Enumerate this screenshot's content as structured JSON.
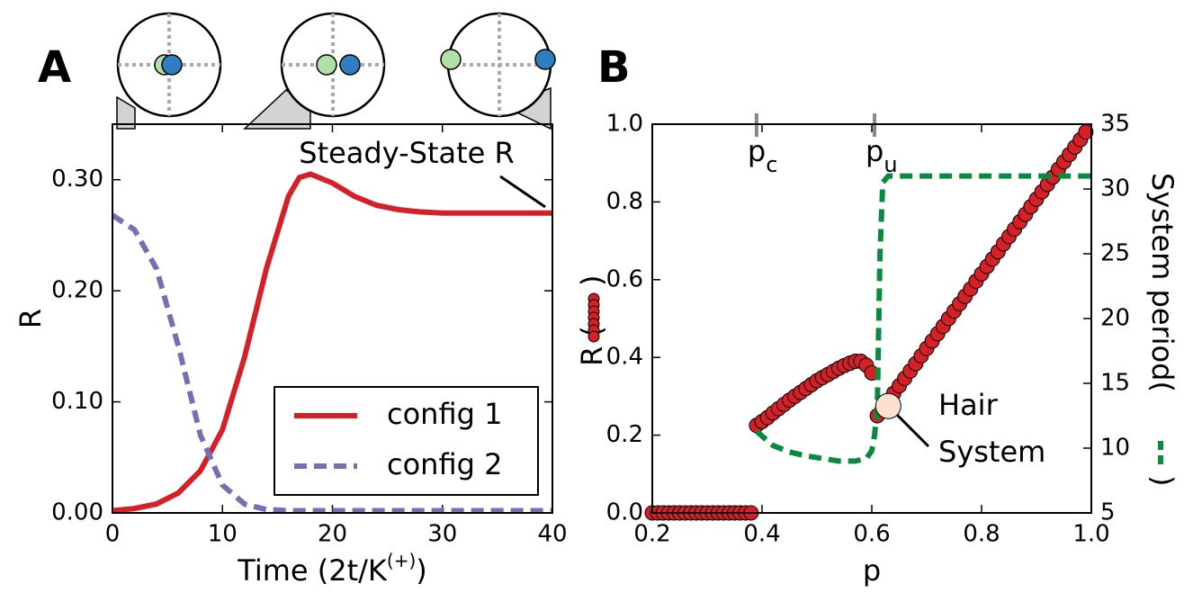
{
  "chart_data": [
    {
      "type": "line",
      "panel": "A",
      "xlabel": "Time (2t/K",
      "xlabel_sup": "(+)",
      "xlabel_end": ")",
      "ylabel": "R",
      "annotation": "Steady-State R",
      "x": [
        0,
        2,
        4,
        6,
        8,
        10,
        12,
        14,
        16,
        17,
        18,
        20,
        22,
        24,
        26,
        28,
        30,
        32,
        34,
        36,
        38,
        40
      ],
      "series": [
        {
          "name": "config 1",
          "color": "#d62028",
          "style": "solid",
          "values": [
            0.002,
            0.004,
            0.008,
            0.018,
            0.038,
            0.075,
            0.14,
            0.22,
            0.285,
            0.302,
            0.305,
            0.297,
            0.285,
            0.277,
            0.273,
            0.271,
            0.27,
            0.27,
            0.27,
            0.27,
            0.27,
            0.27
          ]
        },
        {
          "name": "config 2",
          "color": "#7570b3",
          "style": "dashed",
          "values": [
            0.268,
            0.255,
            0.22,
            0.15,
            0.07,
            0.025,
            0.008,
            0.003,
            0.002,
            0.002,
            0.002,
            0.002,
            0.002,
            0.002,
            0.002,
            0.002,
            0.002,
            0.002,
            0.002,
            0.002,
            0.002,
            0.002
          ]
        }
      ],
      "xlim": [
        0,
        40
      ],
      "xticks": [
        0,
        10,
        20,
        30,
        40
      ],
      "ylim": [
        0,
        0.35
      ],
      "yticks": [
        {
          "value": 0,
          "label": "0.00"
        },
        {
          "value": 0.1,
          "label": "0.10"
        },
        {
          "value": 0.2,
          "label": "0.20"
        },
        {
          "value": 0.3,
          "label": "0.30"
        }
      ],
      "legend": "lower right"
    },
    {
      "type": "scatter",
      "panel": "B",
      "xlabel": "p",
      "ylabel": "R (",
      "ylabel_end": ")",
      "y2label": "System period(",
      "y2label_end": ")",
      "markers": [
        {
          "value": 0.39,
          "label": "p",
          "sub": "c"
        },
        {
          "value": 0.605,
          "label": "p",
          "sub": "u"
        }
      ],
      "series": [
        {
          "color": "#d62028",
          "style": "markers",
          "x": [
            0.2,
            0.21,
            0.22,
            0.23,
            0.24,
            0.25,
            0.26,
            0.27,
            0.28,
            0.29,
            0.3,
            0.31,
            0.32,
            0.33,
            0.34,
            0.35,
            0.36,
            0.37,
            0.38,
            0.39,
            0.4,
            0.41,
            0.42,
            0.43,
            0.44,
            0.45,
            0.46,
            0.47,
            0.48,
            0.49,
            0.5,
            0.51,
            0.52,
            0.53,
            0.54,
            0.55,
            0.56,
            0.57,
            0.58,
            0.59,
            0.6,
            0.61,
            0.62,
            0.63,
            0.64,
            0.65,
            0.66,
            0.67,
            0.68,
            0.69,
            0.7,
            0.71,
            0.72,
            0.73,
            0.74,
            0.75,
            0.76,
            0.77,
            0.78,
            0.79,
            0.8,
            0.81,
            0.82,
            0.83,
            0.84,
            0.85,
            0.86,
            0.87,
            0.88,
            0.89,
            0.9,
            0.91,
            0.92,
            0.93,
            0.94,
            0.95,
            0.96,
            0.97,
            0.98,
            0.99
          ],
          "values": [
            0,
            0,
            0,
            0,
            0,
            0,
            0,
            0,
            0,
            0,
            0,
            0,
            0,
            0,
            0,
            0,
            0,
            0,
            0,
            0.225,
            0.235,
            0.245,
            0.257,
            0.268,
            0.279,
            0.29,
            0.3,
            0.31,
            0.32,
            0.33,
            0.34,
            0.348,
            0.356,
            0.364,
            0.372,
            0.379,
            0.385,
            0.39,
            0.39,
            0.38,
            0.36,
            0.25,
            0.269,
            0.288,
            0.308,
            0.327,
            0.346,
            0.365,
            0.384,
            0.404,
            0.423,
            0.442,
            0.461,
            0.48,
            0.5,
            0.519,
            0.538,
            0.557,
            0.576,
            0.596,
            0.615,
            0.634,
            0.653,
            0.672,
            0.692,
            0.711,
            0.73,
            0.749,
            0.768,
            0.788,
            0.807,
            0.826,
            0.845,
            0.864,
            0.884,
            0.903,
            0.922,
            0.941,
            0.96,
            0.98
          ]
        },
        {
          "color": "#0a8a3e",
          "style": "dashed",
          "axis": "y2",
          "x": [
            0.39,
            0.42,
            0.45,
            0.48,
            0.51,
            0.54,
            0.57,
            0.59,
            0.6,
            0.605,
            0.61,
            0.612,
            0.615,
            0.62,
            0.63,
            0.7,
            0.8,
            0.9,
            1.0
          ],
          "values": [
            11.3,
            10.2,
            9.7,
            9.4,
            9.2,
            9.0,
            9.0,
            9.2,
            9.8,
            11,
            13,
            18,
            25,
            30.5,
            31,
            31,
            31,
            31,
            31
          ]
        }
      ],
      "highlight": {
        "x": 0.63,
        "value": 0.275,
        "color": "#fde0d0",
        "label": [
          "Hair",
          "System"
        ]
      },
      "xlim": [
        0.2,
        1.0
      ],
      "xticks": [
        0.2,
        0.4,
        0.6,
        0.8,
        {
          "value": 1,
          "label": "1.0"
        }
      ],
      "ylim": [
        0,
        1.0
      ],
      "yticks": [
        {
          "value": 0,
          "label": "0.0"
        },
        0.2,
        0.4,
        0.6,
        0.8,
        {
          "value": 1,
          "label": "1.0"
        }
      ],
      "y2lim": [
        5,
        35
      ],
      "y2ticks": [
        5,
        10,
        15,
        20,
        25,
        30,
        35
      ]
    }
  ]
}
